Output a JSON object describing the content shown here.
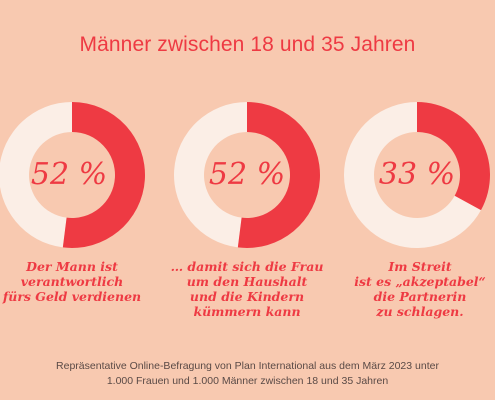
{
  "title": "Männer zwischen 18 und 35 Jahren",
  "colors": {
    "background": "#f8c9b0",
    "accent": "#ee3a43",
    "remainder": "#fbeee6"
  },
  "chart_data": [
    {
      "type": "pie",
      "style": "donut",
      "values": [
        52,
        48
      ],
      "label": "52 %",
      "caption": "Der Mann ist\nverantwortlich\nfürs Geld verdienen"
    },
    {
      "type": "pie",
      "style": "donut",
      "values": [
        52,
        48
      ],
      "label": "52 %",
      "caption": "… damit sich die Frau\num den Haushalt\nund die Kindern\nkümmern kann"
    },
    {
      "type": "pie",
      "style": "donut",
      "values": [
        33,
        67
      ],
      "label": "33 %",
      "caption": "Im Streit\nist es „akzeptabel“\ndie Partnerin\nzu schlagen."
    }
  ],
  "source": "Repräsentative Online-Befragung von Plan International aus dem März 2023 unter\n1.000 Frauen und 1.000 Männer zwischen 18 und 35 Jahren"
}
